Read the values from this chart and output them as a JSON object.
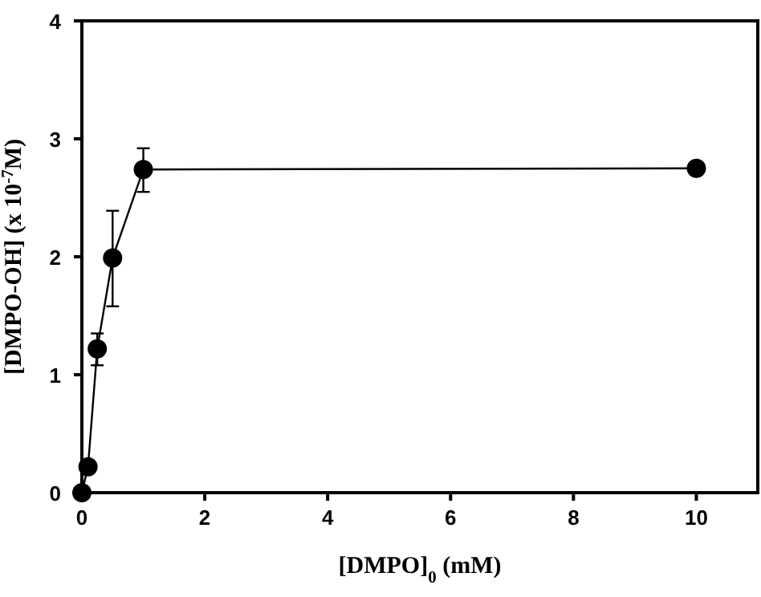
{
  "chart_data": {
    "type": "line",
    "xlabel": "[DMPO]$_{0}$ (mM)",
    "ylabel": "[DMPO-OH] (x 10$^{-7}$M)",
    "x": [
      0,
      0.1,
      0.25,
      0.5,
      1,
      10
    ],
    "series": [
      {
        "color": "#000000",
        "values": [
          0,
          0.22,
          1.22,
          1.99,
          2.74,
          2.75
        ],
        "errors": [
          null,
          null,
          [
            1.08,
            1.35
          ],
          [
            1.58,
            2.39
          ],
          [
            2.55,
            2.92
          ],
          null
        ]
      }
    ],
    "xlim": [
      0,
      11
    ],
    "xticks": [
      0,
      2,
      4,
      6,
      8,
      10
    ],
    "ylim": [
      0,
      4
    ],
    "yticks": [
      0,
      1,
      2,
      3,
      4
    ],
    "marker": "circle",
    "line_style": "solid",
    "grid": false
  }
}
